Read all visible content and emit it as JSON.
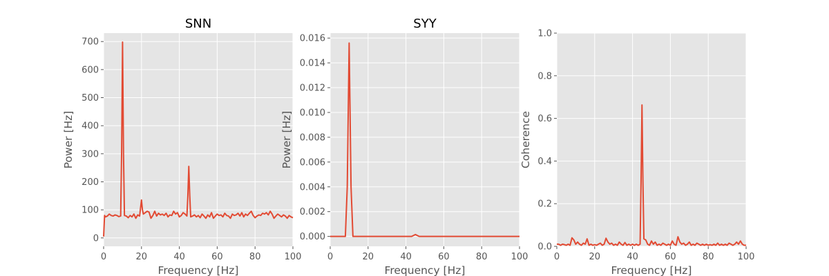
{
  "chart_data": [
    {
      "type": "line",
      "title": "SNN",
      "xlabel": "Frequency [Hz]",
      "ylabel": "Power [Hz]",
      "xlim": [
        0,
        100
      ],
      "ylim": [
        -30,
        730
      ],
      "xticks": [
        0,
        20,
        40,
        60,
        80,
        100
      ],
      "yticks": [
        0,
        100,
        200,
        300,
        400,
        500,
        600,
        700
      ],
      "ytick_labels": [
        "0",
        "100",
        "200",
        "300",
        "400",
        "500",
        "600",
        "700"
      ],
      "grid": true,
      "series": [
        {
          "color": "#E24A33",
          "x": [
            0,
            0.5,
            1,
            2,
            3,
            4,
            5,
            6,
            7,
            8,
            9,
            9.5,
            10,
            10.5,
            11,
            12,
            13,
            14,
            15,
            16,
            17,
            18,
            19,
            20,
            20.5,
            21,
            22,
            23,
            24,
            25,
            26,
            27,
            28,
            29,
            30,
            31,
            32,
            33,
            34,
            35,
            36,
            37,
            38,
            39,
            40,
            41,
            42,
            43,
            44,
            44.5,
            45,
            45.5,
            46,
            47,
            48,
            49,
            50,
            51,
            52,
            53,
            54,
            55,
            56,
            57,
            58,
            59,
            60,
            61,
            62,
            63,
            64,
            65,
            66,
            67,
            68,
            69,
            70,
            71,
            72,
            73,
            74,
            75,
            76,
            77,
            78,
            79,
            80,
            81,
            82,
            83,
            84,
            85,
            86,
            87,
            88,
            89,
            90,
            91,
            92,
            93,
            94,
            95,
            96,
            97,
            98,
            99,
            100
          ],
          "y": [
            5,
            80,
            75,
            78,
            85,
            80,
            78,
            82,
            80,
            76,
            78,
            300,
            698,
            300,
            80,
            78,
            72,
            80,
            75,
            85,
            70,
            82,
            78,
            135,
            100,
            85,
            90,
            95,
            92,
            70,
            80,
            95,
            78,
            88,
            82,
            85,
            80,
            88,
            75,
            82,
            80,
            95,
            85,
            90,
            75,
            80,
            90,
            85,
            78,
            150,
            255,
            150,
            75,
            78,
            82,
            75,
            80,
            72,
            85,
            78,
            70,
            82,
            75,
            90,
            70,
            78,
            85,
            80,
            82,
            75,
            88,
            80,
            78,
            70,
            85,
            80,
            82,
            88,
            78,
            90,
            75,
            85,
            80,
            88,
            95,
            80,
            72,
            78,
            82,
            80,
            88,
            85,
            90,
            82,
            95,
            85,
            70,
            78,
            85,
            80,
            75,
            82,
            78,
            70,
            80,
            75,
            72
          ]
        }
      ]
    },
    {
      "type": "line",
      "title": "SYY",
      "xlabel": "Frequency [Hz]",
      "ylabel": "Power [Hz]",
      "xlim": [
        0,
        100
      ],
      "ylim": [
        -0.0008,
        0.0164
      ],
      "xticks": [
        0,
        20,
        40,
        60,
        80,
        100
      ],
      "yticks": [
        0,
        0.002,
        0.004,
        0.006,
        0.008,
        0.01,
        0.012,
        0.014,
        0.016
      ],
      "ytick_labels": [
        "0.000",
        "0.002",
        "0.004",
        "0.006",
        "0.008",
        "0.010",
        "0.012",
        "0.014",
        "0.016"
      ],
      "grid": true,
      "series": [
        {
          "color": "#E24A33",
          "x": [
            0,
            8,
            9,
            10,
            11,
            12,
            13,
            43,
            45,
            47,
            100
          ],
          "y": [
            0,
            0,
            0.004,
            0.0156,
            0.004,
            0,
            0,
            0,
            0.00015,
            0,
            0
          ]
        }
      ]
    },
    {
      "type": "line",
      "title": "",
      "xlabel": "Frequency [Hz]",
      "ylabel": "Coherence",
      "xlim": [
        0,
        100
      ],
      "ylim": [
        0,
        1.0
      ],
      "xticks": [
        0,
        20,
        40,
        60,
        80,
        100
      ],
      "yticks": [
        0,
        0.2,
        0.4,
        0.6,
        0.8,
        1.0
      ],
      "ytick_labels": [
        "0.0",
        "0.2",
        "0.4",
        "0.6",
        "0.8",
        "1.0"
      ],
      "grid": true,
      "series": [
        {
          "color": "#E24A33",
          "x": [
            0,
            1,
            2,
            3,
            4,
            5,
            6,
            7,
            8,
            9,
            10,
            11,
            12,
            13,
            14,
            15,
            16,
            17,
            18,
            19,
            20,
            21,
            22,
            23,
            24,
            25,
            26,
            27,
            28,
            29,
            30,
            31,
            32,
            33,
            34,
            35,
            36,
            37,
            38,
            39,
            40,
            41,
            42,
            43,
            44,
            44.5,
            45,
            45.5,
            46,
            47,
            48,
            49,
            50,
            51,
            52,
            53,
            54,
            55,
            56,
            57,
            58,
            59,
            60,
            61,
            62,
            63,
            64,
            65,
            66,
            67,
            68,
            69,
            70,
            71,
            72,
            73,
            74,
            75,
            76,
            77,
            78,
            79,
            80,
            81,
            82,
            83,
            84,
            85,
            86,
            87,
            88,
            89,
            90,
            91,
            92,
            93,
            94,
            95,
            96,
            97,
            98,
            99,
            100
          ],
          "y": [
            0.01,
            0.01,
            0.005,
            0.01,
            0.008,
            0.005,
            0.01,
            0.005,
            0.04,
            0.03,
            0.01,
            0.02,
            0.01,
            0.005,
            0.015,
            0.01,
            0.035,
            0.005,
            0.01,
            0.005,
            0.008,
            0.005,
            0.01,
            0.015,
            0.005,
            0.01,
            0.038,
            0.02,
            0.01,
            0.015,
            0.005,
            0.01,
            0.005,
            0.02,
            0.01,
            0.005,
            0.018,
            0.005,
            0.01,
            0.005,
            0.01,
            0.005,
            0.01,
            0.005,
            0.01,
            0.3,
            0.663,
            0.3,
            0.035,
            0.03,
            0.01,
            0.005,
            0.025,
            0.01,
            0.02,
            0.005,
            0.01,
            0.005,
            0.015,
            0.01,
            0.005,
            0.01,
            0.005,
            0.025,
            0.01,
            0.005,
            0.045,
            0.02,
            0.01,
            0.015,
            0.005,
            0.01,
            0.02,
            0.005,
            0.01,
            0.005,
            0.015,
            0.01,
            0.005,
            0.01,
            0.005,
            0.01,
            0.005,
            0.008,
            0.005,
            0.01,
            0.005,
            0.015,
            0.005,
            0.01,
            0.005,
            0.01,
            0.005,
            0.015,
            0.01,
            0.005,
            0.01,
            0.02,
            0.01,
            0.025,
            0.01,
            0.005,
            0.005
          ]
        }
      ]
    }
  ]
}
